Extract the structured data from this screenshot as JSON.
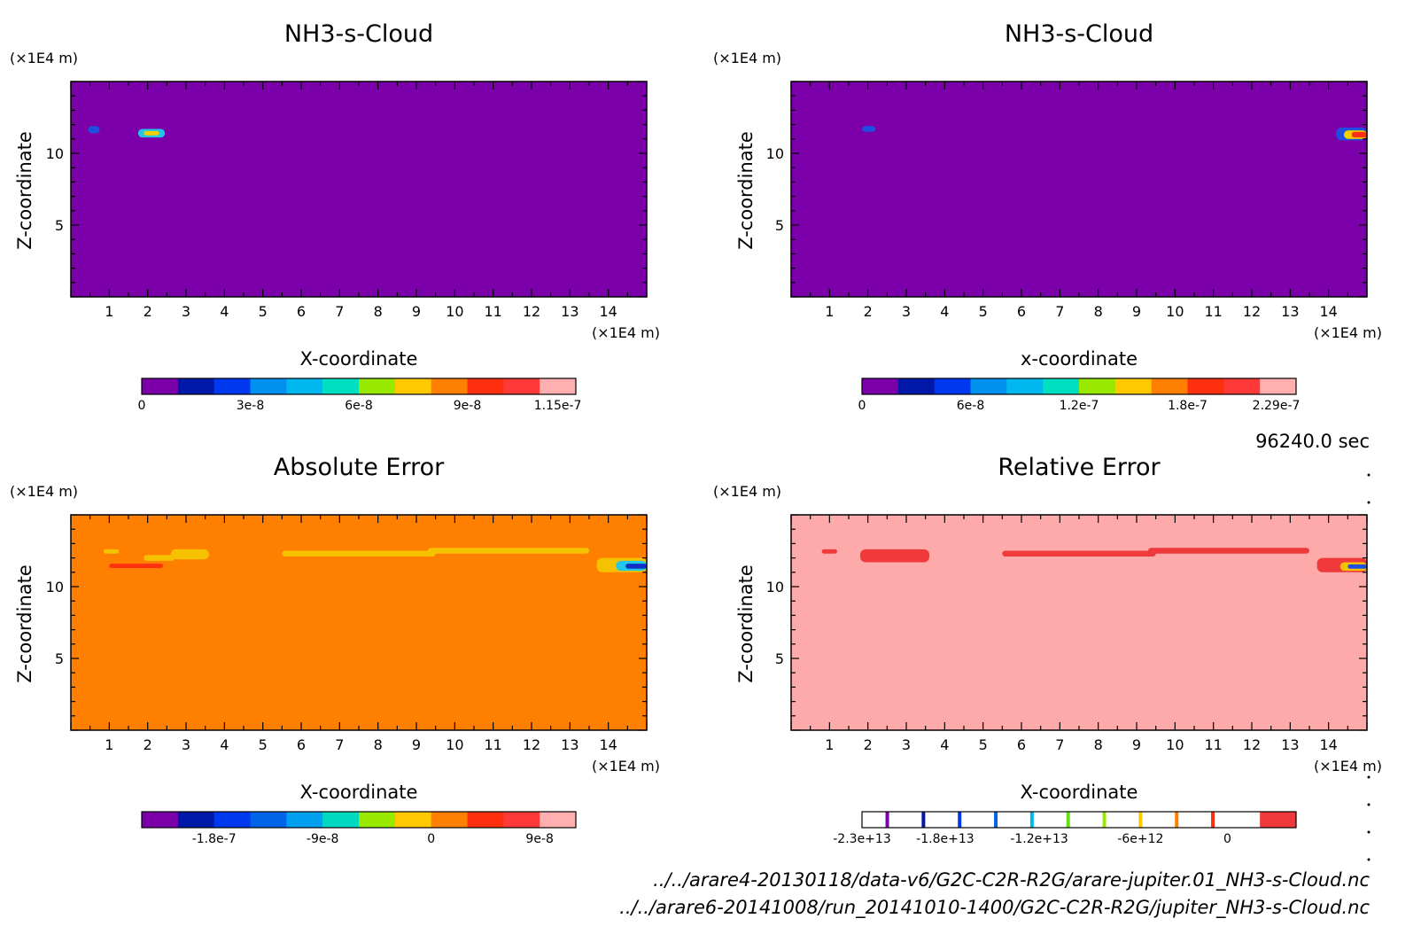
{
  "chart_data": [
    {
      "type": "heatmap",
      "id": "p1",
      "title": "NH3-s-Cloud",
      "xlabel": "X-coordinate",
      "ylabel": "Z-coordinate",
      "x_unit": "(×1E4 m)",
      "y_unit": "(×1E4 m)",
      "xlim": [
        0,
        15
      ],
      "ylim": [
        0,
        15
      ],
      "x_ticks": [
        "1",
        "2",
        "3",
        "4",
        "5",
        "6",
        "7",
        "8",
        "9",
        "10",
        "11",
        "12",
        "13",
        "14"
      ],
      "y_ticks": [
        "5",
        "10"
      ],
      "background": "#7B00AA",
      "features": [
        {
          "x": [
            0.45,
            0.75
          ],
          "z": [
            11.4,
            11.9
          ],
          "color": "#1F4FE0"
        },
        {
          "x": [
            1.75,
            2.45
          ],
          "z": [
            11.1,
            11.7
          ],
          "color": "#22C7E8"
        },
        {
          "x": [
            1.9,
            2.3
          ],
          "z": [
            11.25,
            11.55
          ],
          "color": "#F5D000"
        }
      ],
      "colorbar": {
        "colors": [
          "#7B00AA",
          "#0018A8",
          "#0038F0",
          "#0090F0",
          "#00B8F0",
          "#00E0C0",
          "#99E800",
          "#FFC800",
          "#FF7F00",
          "#FF3010",
          "#FF3838",
          "#FFAFAF"
        ],
        "labels": [
          "0",
          "3e-8",
          "6e-8",
          "9e-8",
          "1.15e-7"
        ],
        "label_at": [
          0,
          3,
          6,
          9,
          11.5
        ]
      }
    },
    {
      "type": "heatmap",
      "id": "p2",
      "title": "NH3-s-Cloud",
      "xlabel": "x-coordinate",
      "ylabel": "Z-coordinate",
      "x_unit": "(×1E4 m)",
      "y_unit": "(×1E4 m)",
      "xlim": [
        0,
        15
      ],
      "ylim": [
        0,
        15
      ],
      "x_ticks": [
        "1",
        "2",
        "3",
        "4",
        "5",
        "6",
        "7",
        "8",
        "9",
        "10",
        "11",
        "12",
        "13",
        "14"
      ],
      "y_ticks": [
        "5",
        "10"
      ],
      "background": "#7B00AA",
      "features": [
        {
          "x": [
            1.85,
            2.2
          ],
          "z": [
            11.5,
            11.9
          ],
          "color": "#1F4FE0"
        },
        {
          "x": [
            14.2,
            15
          ],
          "z": [
            10.9,
            11.8
          ],
          "color": "#1F4FE0"
        },
        {
          "x": [
            14.4,
            15
          ],
          "z": [
            11.0,
            11.6
          ],
          "color": "#F5D000"
        },
        {
          "x": [
            14.6,
            15
          ],
          "z": [
            11.1,
            11.5
          ],
          "color": "#FF3010"
        }
      ],
      "colorbar": {
        "colors": [
          "#7B00AA",
          "#0018A8",
          "#0038F0",
          "#0090F0",
          "#00B8F0",
          "#00E0C0",
          "#99E800",
          "#FFC800",
          "#FF7F00",
          "#FF3010",
          "#FF3838",
          "#FFAFAF"
        ],
        "labels": [
          "0",
          "6e-8",
          "1.2e-7",
          "1.8e-7",
          "2.29e-7"
        ],
        "label_at": [
          0,
          3,
          6,
          9,
          11.45
        ]
      }
    },
    {
      "type": "heatmap",
      "id": "p3",
      "title": "Absolute Error",
      "xlabel": "X-coordinate",
      "ylabel": "Z-coordinate",
      "x_unit": "(×1E4 m)",
      "y_unit": "(×1E4 m)",
      "xlim": [
        0,
        15
      ],
      "ylim": [
        0,
        15
      ],
      "x_ticks": [
        "1",
        "2",
        "3",
        "4",
        "5",
        "6",
        "7",
        "8",
        "9",
        "10",
        "11",
        "12",
        "13",
        "14"
      ],
      "y_ticks": [
        "5",
        "10"
      ],
      "background": "#FF7F00",
      "features": [
        {
          "x": [
            0.85,
            1.25
          ],
          "z": [
            12.3,
            12.6
          ],
          "color": "#F5C200"
        },
        {
          "x": [
            1.9,
            2.7
          ],
          "z": [
            11.8,
            12.2
          ],
          "color": "#F5C200"
        },
        {
          "x": [
            2.6,
            3.6
          ],
          "z": [
            11.9,
            12.6
          ],
          "color": "#F5C200"
        },
        {
          "x": [
            1.0,
            2.4
          ],
          "z": [
            11.3,
            11.6
          ],
          "color": "#FF3010"
        },
        {
          "x": [
            5.5,
            9.5
          ],
          "z": [
            12.1,
            12.5
          ],
          "color": "#F5C200"
        },
        {
          "x": [
            9.3,
            13.5
          ],
          "z": [
            12.3,
            12.7
          ],
          "color": "#F5C200"
        },
        {
          "x": [
            13.7,
            15
          ],
          "z": [
            11.0,
            12.0
          ],
          "color": "#F5C200"
        },
        {
          "x": [
            14.2,
            15
          ],
          "z": [
            11.1,
            11.8
          ],
          "color": "#22C7E8"
        },
        {
          "x": [
            14.45,
            15
          ],
          "z": [
            11.25,
            11.6
          ],
          "color": "#1030C0"
        }
      ],
      "colorbar": {
        "colors": [
          "#7B00AA",
          "#0018A8",
          "#0038F0",
          "#0064E8",
          "#00A0F0",
          "#00D8C0",
          "#99E800",
          "#FFC800",
          "#FF7F00",
          "#FF3010",
          "#FF3838",
          "#FFAFAF"
        ],
        "labels": [
          "-1.8e-7",
          "-9e-8",
          "0",
          "9e-8"
        ],
        "label_at": [
          2,
          5,
          8,
          11
        ]
      }
    },
    {
      "type": "heatmap",
      "id": "p4",
      "title": "Relative Error",
      "xlabel": "X-coordinate",
      "ylabel": "Z-coordinate",
      "x_unit": "(×1E4 m)",
      "y_unit": "(×1E4 m)",
      "xlim": [
        0,
        15
      ],
      "ylim": [
        0,
        15
      ],
      "x_ticks": [
        "1",
        "2",
        "3",
        "4",
        "5",
        "6",
        "7",
        "8",
        "9",
        "10",
        "11",
        "12",
        "13",
        "14"
      ],
      "y_ticks": [
        "5",
        "10"
      ],
      "background": "#FFAAAA",
      "features": [
        {
          "x": [
            0.8,
            1.2
          ],
          "z": [
            12.3,
            12.6
          ],
          "color": "#F0393B"
        },
        {
          "x": [
            1.8,
            3.6
          ],
          "z": [
            11.7,
            12.6
          ],
          "color": "#F0393B"
        },
        {
          "x": [
            5.5,
            9.5
          ],
          "z": [
            12.1,
            12.5
          ],
          "color": "#F0393B"
        },
        {
          "x": [
            9.3,
            13.5
          ],
          "z": [
            12.3,
            12.7
          ],
          "color": "#F0393B"
        },
        {
          "x": [
            13.7,
            15
          ],
          "z": [
            11.0,
            12.0
          ],
          "color": "#F0393B"
        },
        {
          "x": [
            14.3,
            15
          ],
          "z": [
            11.1,
            11.7
          ],
          "color": "#F5C200"
        },
        {
          "x": [
            14.5,
            15
          ],
          "z": [
            11.25,
            11.55
          ],
          "color": "#1F4FE0"
        }
      ],
      "colorbar": {
        "colors": [
          "#FFFFFF",
          "#FFFFFF",
          "#FFFFFF",
          "#FFFFFF",
          "#FFFFFF",
          "#FFFFFF",
          "#FFFFFF",
          "#FFFFFF",
          "#FFFFFF",
          "#FFFFFF",
          "#FFFFFF",
          "#F0393B"
        ],
        "separators": [
          "#7B00AA",
          "#0018A8",
          "#0038F0",
          "#0064E8",
          "#00B8F0",
          "#66E010",
          "#99E800",
          "#FFC800",
          "#FF7F00",
          "#FF3010"
        ],
        "labels": [
          "-2.3e+13",
          "-1.8e+13",
          "-1.2e+13",
          "-6e+12",
          "0"
        ],
        "label_at": [
          0,
          2.3,
          4.9,
          7.7,
          10.1
        ]
      }
    }
  ],
  "info": {
    "time": "96240.0 sec",
    "file1": "../../arare4-20130118/data-v6/G2C-C2R-R2G/arare-jupiter.01_NH3-s-Cloud.nc",
    "file2": "../../arare6-20141008/run_20141010-1400/G2C-C2R-R2G/jupiter_NH3-s-Cloud.nc"
  }
}
